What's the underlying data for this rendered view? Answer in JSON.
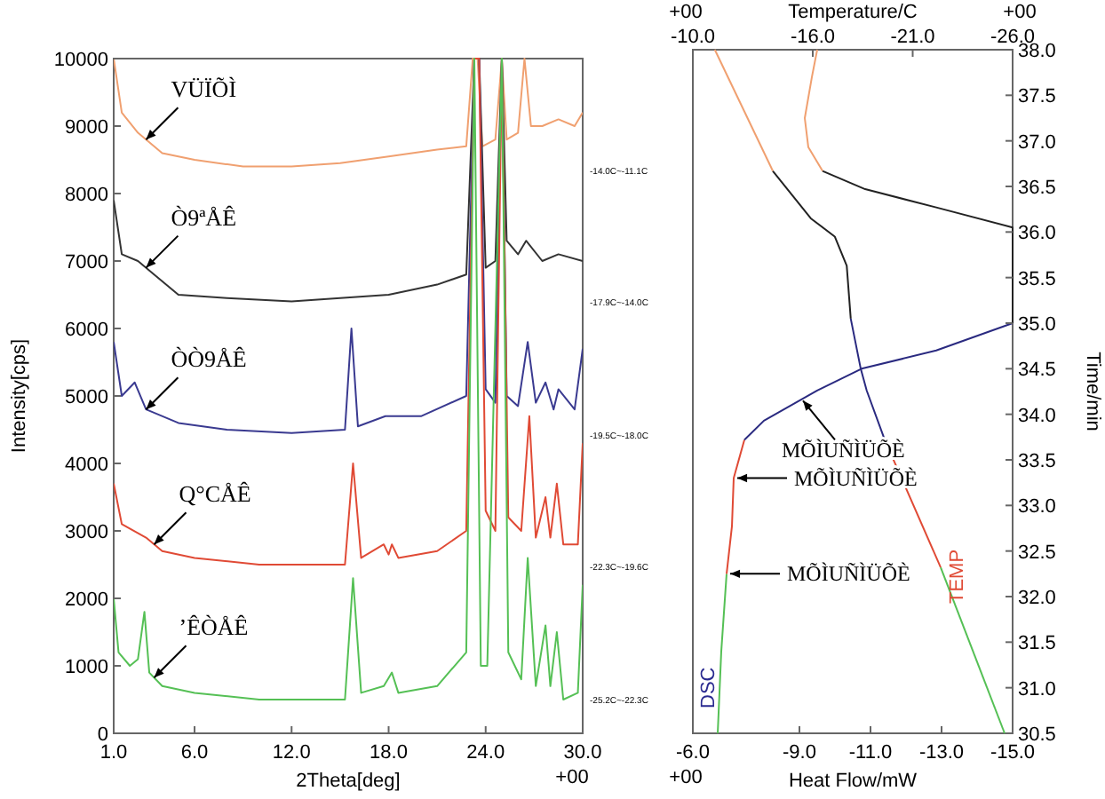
{
  "chart_data": [
    {
      "type": "line",
      "xlabel": "2Theta[deg]",
      "ylabel": "Intensity[cps]",
      "xlim": [
        1,
        30
      ],
      "ylim": [
        0,
        10000
      ],
      "xticks": [
        {
          "value": 1,
          "label": "1.0"
        },
        {
          "value": 6,
          "label": "6.0"
        },
        {
          "value": 12,
          "label": "12.0"
        },
        {
          "value": 18,
          "label": "18.0"
        },
        {
          "value": 24,
          "label": "24.0"
        },
        {
          "value": 30,
          "label": "30.0"
        }
      ],
      "yticks": [
        0,
        1000,
        2000,
        3000,
        4000,
        5000,
        6000,
        7000,
        8000,
        9000,
        10000
      ],
      "series": [
        {
          "color": "#f0a070",
          "x": [
            1,
            1.5,
            2.5,
            4,
            6,
            9,
            12,
            15,
            18,
            21,
            22.8,
            23.2,
            23.5,
            23.8,
            24.6,
            25,
            25.3,
            26,
            26.4,
            26.8,
            27.5,
            28.5,
            29.5,
            30
          ],
          "values": [
            10000,
            9200,
            8900,
            8600,
            8500,
            8400,
            8400,
            8450,
            8550,
            8650,
            8700,
            10000,
            10000,
            8700,
            8800,
            10000,
            8800,
            8900,
            10000,
            9000,
            9000,
            9100,
            9000,
            9200
          ]
        },
        {
          "color": "#333333",
          "x": [
            1,
            1.5,
            2.5,
            3.5,
            5,
            8,
            12,
            15,
            18,
            21,
            22.8,
            23.3,
            23.6,
            24,
            24.6,
            25,
            25.3,
            26,
            26.5,
            27.5,
            28.5,
            30
          ],
          "values": [
            7900,
            7100,
            7000,
            6800,
            6500,
            6450,
            6400,
            6450,
            6500,
            6650,
            6800,
            10000,
            10000,
            6900,
            7000,
            10000,
            7300,
            7100,
            7300,
            7000,
            7100,
            7000
          ]
        },
        {
          "color": "#3a3a90",
          "x": [
            1,
            1.5,
            2.3,
            3,
            5,
            8,
            12,
            15.3,
            15.7,
            16.1,
            17.8,
            20,
            22.8,
            23.3,
            23.6,
            24,
            24.6,
            25,
            25.3,
            26,
            26.6,
            27.1,
            27.7,
            28.2,
            28.5,
            29.5,
            30
          ],
          "values": [
            5800,
            5000,
            5200,
            4800,
            4600,
            4500,
            4450,
            4500,
            6000,
            4550,
            4700,
            4700,
            5000,
            10000,
            10000,
            5100,
            4900,
            10000,
            5000,
            4850,
            5800,
            4900,
            5200,
            4800,
            5100,
            4800,
            5700
          ]
        },
        {
          "color": "#e04a35",
          "x": [
            1,
            1.5,
            3,
            4,
            6,
            10,
            15.3,
            15.8,
            16.3,
            17.7,
            18,
            18.2,
            18.6,
            21,
            22.8,
            23.3,
            23.6,
            24,
            24.6,
            25,
            25.4,
            26.2,
            26.7,
            27.1,
            27.7,
            28,
            28.4,
            28.8,
            29.7,
            30
          ],
          "values": [
            3700,
            3100,
            2900,
            2700,
            2600,
            2500,
            2500,
            4000,
            2600,
            2800,
            2650,
            2800,
            2600,
            2700,
            3000,
            10000,
            10000,
            3300,
            3000,
            10000,
            3200,
            3000,
            4700,
            2900,
            3500,
            2900,
            3700,
            2800,
            2800,
            4300
          ]
        },
        {
          "color": "#55c055",
          "x": [
            1,
            1.3,
            2,
            2.5,
            2.9,
            3.2,
            4,
            6,
            10,
            15.3,
            15.8,
            16.3,
            17.7,
            18.2,
            18.6,
            21,
            22.8,
            23.3,
            23.7,
            24.1,
            25,
            25.4,
            26.2,
            26.6,
            27.1,
            27.7,
            28,
            28.4,
            28.8,
            29.7,
            30
          ],
          "values": [
            2000,
            1200,
            1000,
            1100,
            1800,
            900,
            700,
            600,
            500,
            500,
            2300,
            600,
            700,
            900,
            600,
            700,
            1200,
            10000,
            1000,
            1000,
            10000,
            1200,
            800,
            2600,
            700,
            1600,
            700,
            1500,
            500,
            600,
            2200
          ]
        }
      ],
      "annotations": [
        {
          "text": "VÜÏÕÌ",
          "x": 3,
          "y": 8800
        },
        {
          "text": "Ò9ªÅÊ",
          "x": 3,
          "y": 6900
        },
        {
          "text": "ÒÒ9ÅÊ",
          "x": 3,
          "y": 4800
        },
        {
          "text": "Q°CÅÊ",
          "x": 3.5,
          "y": 2800
        },
        {
          "text": "ʼÊÒÅÊ",
          "x": 3.5,
          "y": 825
        },
        "-14.0C~-11.1C",
        "-17.9C~-14.0C",
        "-19.5C~-18.0C",
        "-22.3C~-19.6C",
        "-25.2C~-22.3C",
        "+00"
      ]
    },
    {
      "type": "line",
      "xlabel": "Heat Flow/mW",
      "x2label": "Temperature/C",
      "ylabel": "Time/min",
      "xlim": [
        -6,
        -15
      ],
      "x2lim": [
        -10,
        -26
      ],
      "ylim": [
        30.5,
        38
      ],
      "xticks": [
        {
          "value": -6,
          "label": "-6.0"
        },
        {
          "value": -9,
          "label": "-9.0"
        },
        {
          "value": -11,
          "label": "-11.0"
        },
        {
          "value": -13,
          "label": "-13.0"
        },
        {
          "value": -15,
          "label": "-15.0"
        }
      ],
      "x2ticks": [
        {
          "value": -10,
          "label": "-10.0"
        },
        {
          "value": -16,
          "label": "-16.0"
        },
        {
          "value": -21,
          "label": "-21.0"
        },
        {
          "value": -26,
          "label": "-26.0"
        }
      ],
      "yticks": [
        {
          "value": 30.5,
          "label": "30.5"
        },
        {
          "value": 31,
          "label": "31.0"
        },
        {
          "value": 31.5,
          "label": "31.5"
        },
        {
          "value": 32,
          "label": "32.0"
        },
        {
          "value": 32.5,
          "label": "32.5"
        },
        {
          "value": 33,
          "label": "33.0"
        },
        {
          "value": 33.5,
          "label": "33.5"
        },
        {
          "value": 34,
          "label": "34.0"
        },
        {
          "value": 34.5,
          "label": "34.5"
        },
        {
          "value": 35,
          "label": "35.0"
        },
        {
          "value": 35.5,
          "label": "35.5"
        },
        {
          "value": 36,
          "label": "36.0"
        },
        {
          "value": 36.5,
          "label": "36.5"
        },
        {
          "value": 37,
          "label": "37.0"
        },
        {
          "value": 37.5,
          "label": "37.5"
        },
        {
          "value": 38,
          "label": "38.0"
        }
      ],
      "series": [
        {
          "color": "#55c055",
          "x": [
            -6.7,
            -6.8,
            -6.95
          ],
          "values": [
            30.5,
            31.4,
            32.25
          ]
        },
        {
          "color": "#e04a35",
          "x": [
            -6.95,
            -7.1,
            -7.15,
            -7.45
          ],
          "values": [
            32.25,
            32.77,
            33.3,
            33.72
          ]
        },
        {
          "color": "#2a2a80",
          "x": [
            -7.45,
            -8,
            -9.5,
            -10.75,
            -12.85,
            -15
          ],
          "values": [
            33.72,
            33.93,
            34.26,
            34.5,
            34.7,
            35
          ]
        },
        {
          "color": "#222222",
          "x": [
            -15,
            -15,
            -12.85,
            -10.85,
            -9.65
          ],
          "values": [
            35,
            36.05,
            36.27,
            36.47,
            36.67
          ]
        },
        {
          "color": "#f0a070",
          "x": [
            -9.65,
            -9.25,
            -9.15,
            -9.35,
            -9.5
          ],
          "values": [
            36.67,
            36.93,
            37.25,
            37.7,
            38
          ]
        },
        {
          "axis": "x2",
          "color": "#55c055",
          "x": [
            -25.6,
            -22.4
          ],
          "values": [
            30.5,
            32.32
          ]
        },
        {
          "axis": "x2",
          "color": "#e04a35",
          "x": [
            -22.4,
            -19.6
          ],
          "values": [
            32.32,
            33.72
          ]
        },
        {
          "axis": "x2",
          "color": "#2a2a80",
          "x": [
            -19.6,
            -18.7,
            -18.4,
            -17.9
          ],
          "values": [
            33.72,
            34.26,
            34.5,
            35.05
          ]
        },
        {
          "axis": "x2",
          "color": "#222222",
          "x": [
            -17.9,
            -17.7,
            -17.1,
            -15.9,
            -14
          ],
          "values": [
            35.05,
            35.63,
            35.95,
            36.15,
            36.67
          ]
        },
        {
          "axis": "x2",
          "color": "#f0a070",
          "x": [
            -14,
            -11.1
          ],
          "values": [
            36.67,
            38
          ]
        }
      ],
      "annotations": [
        {
          "text": "MÕÌUÑÌÜÕÈ",
          "x": -9,
          "y": 34.15
        },
        {
          "text": "MÕÌUÑÌÜÕÈ",
          "x": -7.15,
          "y": 33.3
        },
        {
          "text": "MÕÌUÑÌÜÕÈ",
          "x": -6.95,
          "y": 32.25
        },
        "DSC",
        "TEMP",
        "+00",
        "+00",
        "+00"
      ]
    }
  ]
}
